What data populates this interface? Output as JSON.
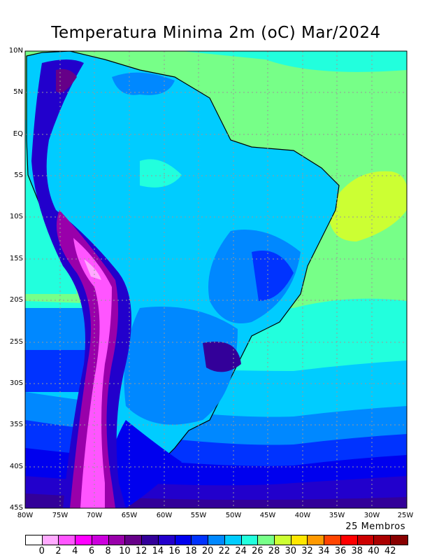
{
  "title": "Temperatura Minima 2m (oC) Mar/2024",
  "lat_labels": [
    "10N",
    "5N",
    "EQ",
    "5S",
    "10S",
    "15S",
    "20S",
    "25S",
    "30S",
    "35S",
    "40S",
    "45S"
  ],
  "lon_labels": [
    "80W",
    "75W",
    "70W",
    "65W",
    "60W",
    "55W",
    "50W",
    "45W",
    "40W",
    "35W",
    "30W",
    "25W"
  ],
  "members_label": "25 Membros",
  "colorbar": {
    "colors": [
      "#ffffff",
      "#ffaaff",
      "#ff55ff",
      "#ff00ff",
      "#cc00dd",
      "#9900aa",
      "#660088",
      "#330099",
      "#2200cc",
      "#0000ee",
      "#0033ff",
      "#0088ff",
      "#00ccff",
      "#22ffdd",
      "#77ff88",
      "#ccff33",
      "#ffe600",
      "#ff9900",
      "#ff4400",
      "#ff0000",
      "#cc0000",
      "#aa0000",
      "#880000"
    ],
    "labels": [
      "0",
      "2",
      "4",
      "6",
      "8",
      "10",
      "12",
      "14",
      "16",
      "18",
      "20",
      "22",
      "24",
      "26",
      "28",
      "30",
      "32",
      "34",
      "36",
      "38",
      "40",
      "42"
    ]
  }
}
